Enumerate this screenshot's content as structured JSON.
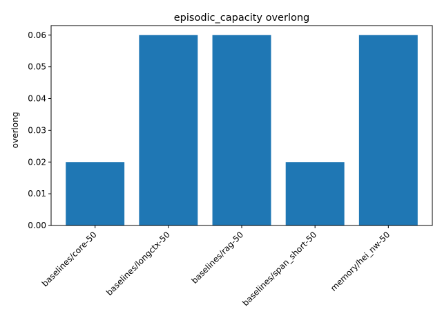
{
  "chart_data": {
    "type": "bar",
    "title": "episodic_capacity overlong",
    "xlabel": "",
    "ylabel": "overlong",
    "categories": [
      "baselines/core-50",
      "baselines/longctx-50",
      "baselines/rag-50",
      "baselines/span_short-50",
      "memory/hei_nw-50"
    ],
    "values": [
      0.02,
      0.06,
      0.06,
      0.02,
      0.06
    ],
    "ylim": [
      0,
      0.063
    ],
    "yticks": [
      "0.00",
      "0.01",
      "0.02",
      "0.03",
      "0.04",
      "0.05",
      "0.06"
    ],
    "grid": false,
    "bar_color": "#1f77b4"
  }
}
